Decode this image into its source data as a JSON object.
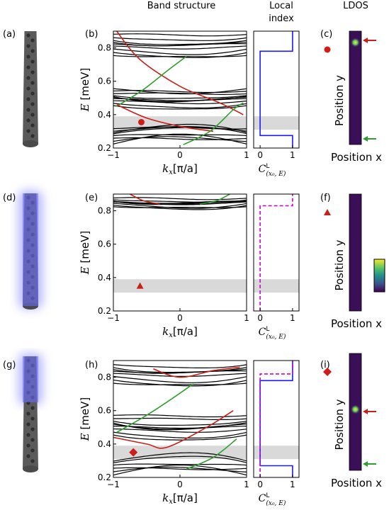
{
  "header": {
    "band_structure": "Band structure",
    "local_index_line1": "Local",
    "local_index_line2": "index",
    "ldos": "LDOS"
  },
  "panel_labels": [
    "(a)",
    "(b)",
    "(c)",
    "(d)",
    "(e)",
    "(f)",
    "(g)",
    "(h)",
    "(i)"
  ],
  "axes": {
    "energy_label_var": "E",
    "energy_unit": "[meV]",
    "k_label_var": "k",
    "k_label_sub": "x",
    "k_label_unit": "[π/a]",
    "index_label_main": "C",
    "index_label_sup": "L",
    "index_label_sub": "(x₀, E)",
    "position_x": "Position x",
    "position_y": "Position y",
    "k_ticks": [
      "−1",
      "0",
      "1"
    ],
    "e_ticks": [
      "0.2",
      "0.4",
      "0.6",
      "0.8"
    ],
    "c_ticks": [
      "0",
      "1"
    ]
  },
  "colors": {
    "band": "#000000",
    "edge_red": "#cc1f1a",
    "edge_green": "#2ca02c",
    "gap": "#d9d9d9",
    "index_blue": "#1a1aff",
    "index_magenta": "#cc00cc",
    "ldos_bg": "#3b0f58",
    "structure_gray": "#5a5a5a",
    "structure_glow": "#7a7aff"
  },
  "chart_data": [
    {
      "panel": "(b)",
      "type": "line",
      "xlabel": "k_x [π/a]",
      "ylabel": "E [meV]",
      "xlim": [
        -1,
        1
      ],
      "ylim": [
        0.2,
        0.9
      ],
      "gap_band": [
        0.31,
        0.39
      ],
      "bulk_bands": {
        "lower": [
          0.2,
          0.32
        ],
        "middle": [
          0.46,
          0.55
        ],
        "upper": [
          0.76,
          0.9
        ]
      },
      "edge_states": [
        {
          "color": "red",
          "points": [
            [
              -0.95,
              0.9
            ],
            [
              -0.6,
              0.73
            ],
            [
              0.0,
              0.57
            ],
            [
              0.6,
              0.47
            ],
            [
              0.95,
              0.4
            ]
          ]
        },
        {
          "color": "green",
          "points": [
            [
              -0.95,
              0.45
            ],
            [
              -0.55,
              0.55
            ],
            [
              -0.2,
              0.66
            ],
            [
              0.1,
              0.75
            ]
          ]
        },
        {
          "color": "red",
          "points": [
            [
              -0.95,
              0.46
            ],
            [
              -0.5,
              0.38
            ],
            [
              0.0,
              0.33
            ],
            [
              0.5,
              0.3
            ]
          ]
        },
        {
          "color": "green",
          "points": [
            [
              0.05,
              0.22
            ],
            [
              0.45,
              0.3
            ],
            [
              0.8,
              0.43
            ],
            [
              0.95,
              0.47
            ]
          ]
        }
      ],
      "marker": {
        "shape": "circle",
        "k": -0.58,
        "E": 0.355
      }
    },
    {
      "panel": "(e)",
      "type": "line",
      "xlabel": "k_x [π/a]",
      "ylabel": "E [meV]",
      "xlim": [
        -1,
        1
      ],
      "ylim": [
        0.2,
        0.9
      ],
      "gap_band": [
        0.31,
        0.39
      ],
      "bulk_bands": {
        "upper": [
          0.82,
          0.9
        ]
      },
      "marker": {
        "shape": "triangle",
        "k": -0.6,
        "E": 0.35
      }
    },
    {
      "panel": "(h)",
      "type": "line",
      "xlabel": "k_x [π/a]",
      "ylabel": "E [meV]",
      "xlim": [
        -1,
        1
      ],
      "ylim": [
        0.2,
        0.9
      ],
      "gap_band": [
        0.31,
        0.39
      ],
      "bulk_bands": {
        "lower": [
          0.2,
          0.3
        ],
        "middle": [
          0.45,
          0.57
        ],
        "upper": [
          0.76,
          0.9
        ]
      },
      "marker": {
        "shape": "diamond",
        "k": -0.7,
        "E": 0.35
      }
    },
    {
      "panel": "(b)",
      "type": "line",
      "xlabel": "C^L_(x0,E)",
      "xlim": [
        -0.2,
        1.2
      ],
      "ylim": [
        0.2,
        0.9
      ],
      "series": [
        {
          "color": "blue",
          "points": [
            [
              1,
              0.2
            ],
            [
              1,
              0.275
            ],
            [
              0,
              0.275
            ],
            [
              0,
              0.78
            ],
            [
              1,
              0.78
            ],
            [
              1,
              0.9
            ]
          ]
        }
      ]
    },
    {
      "panel": "(e)",
      "type": "line",
      "xlabel": "C^L_(x0,E)",
      "xlim": [
        -0.2,
        1.2
      ],
      "ylim": [
        0.2,
        0.9
      ],
      "series": [
        {
          "color": "magenta",
          "style": "dashed",
          "points": [
            [
              0,
              0.2
            ],
            [
              0,
              0.83
            ],
            [
              1,
              0.83
            ],
            [
              1,
              0.9
            ]
          ]
        }
      ]
    },
    {
      "panel": "(h)",
      "type": "line",
      "xlabel": "C^L_(x0,E)",
      "xlim": [
        -0.2,
        1.2
      ],
      "ylim": [
        0.2,
        0.9
      ],
      "series": [
        {
          "color": "blue",
          "points": [
            [
              1,
              0.2
            ],
            [
              1,
              0.27
            ],
            [
              0,
              0.27
            ],
            [
              0,
              0.78
            ],
            [
              1,
              0.78
            ],
            [
              1,
              0.9
            ]
          ]
        },
        {
          "color": "magenta",
          "style": "dashed",
          "points": [
            [
              0,
              0.2
            ],
            [
              0,
              0.82
            ],
            [
              1,
              0.82
            ],
            [
              1,
              0.9
            ]
          ]
        }
      ]
    }
  ]
}
